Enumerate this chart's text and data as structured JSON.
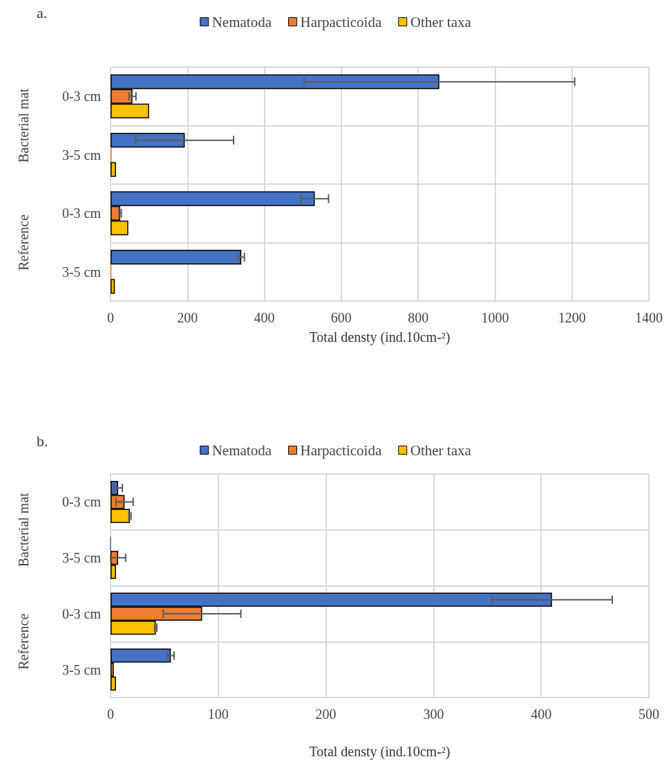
{
  "chart_data": [
    {
      "type": "bar",
      "orientation": "horizontal",
      "title": "a.",
      "xlabel": "Total densty (ind.10cm-²)",
      "categories": [
        "0-3 cm",
        "3-5 cm",
        "0-3 cm",
        "3-5 cm"
      ],
      "annotations": [
        "Bacterial mat",
        "Reference"
      ],
      "xlim": [
        0,
        1400
      ],
      "xticks": [
        0,
        200,
        400,
        600,
        800,
        1000,
        1200,
        1400
      ],
      "grid": true,
      "legend": "top",
      "series": [
        {
          "name": "Nematoda",
          "color": "#4472c4",
          "values": [
            855,
            193,
            531,
            340
          ],
          "errors": [
            352,
            127,
            36,
            8
          ]
        },
        {
          "name": "Harpacticoida",
          "color": "#ed7d31",
          "values": [
            57,
            3,
            25,
            2
          ],
          "errors": [
            9,
            null,
            3,
            null
          ]
        },
        {
          "name": "Other taxa",
          "color": "#ffc000",
          "values": [
            100,
            14,
            46,
            11
          ],
          "errors": [
            null,
            null,
            null,
            null
          ]
        }
      ]
    },
    {
      "type": "bar",
      "orientation": "horizontal",
      "title": "b.",
      "xlabel": "Total densty (ind.10cm-²)",
      "categories": [
        "0-3 cm",
        "3-5 cm",
        "0-3 cm",
        "3-5 cm"
      ],
      "annotations": [
        "Bacterial mat",
        "Reference"
      ],
      "xlim": [
        0,
        500
      ],
      "xticks": [
        0,
        100,
        200,
        300,
        400,
        500
      ],
      "grid": true,
      "legend": "top",
      "series": [
        {
          "name": "Nematoda",
          "color": "#4472c4",
          "values": [
            7,
            0,
            410,
            56
          ],
          "errors": [
            4,
            null,
            56,
            3
          ]
        },
        {
          "name": "Harpacticoida",
          "color": "#ed7d31",
          "values": [
            13,
            7,
            85,
            3
          ],
          "errors": [
            8,
            7,
            36,
            null
          ]
        },
        {
          "name": "Other taxa",
          "color": "#ffc000",
          "values": [
            18,
            5,
            42,
            5
          ],
          "errors": [
            1,
            null,
            1,
            null
          ]
        }
      ]
    }
  ]
}
